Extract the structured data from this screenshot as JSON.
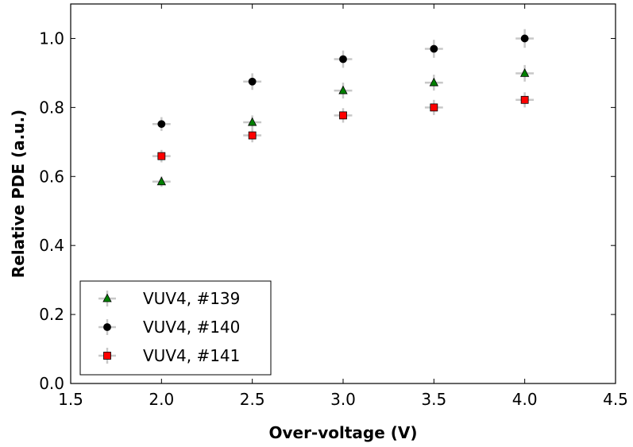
{
  "chart_data": {
    "type": "scatter",
    "xlabel": "Over-voltage (V)",
    "ylabel": "Relative PDE (a.u.)",
    "xlim": [
      1.5,
      4.5
    ],
    "ylim": [
      0.0,
      1.1
    ],
    "xticks": [
      "1.5",
      "2.0",
      "2.5",
      "3.0",
      "3.5",
      "4.0",
      "4.5"
    ],
    "yticks": [
      "0.0",
      "0.2",
      "0.4",
      "0.6",
      "0.8",
      "1.0"
    ],
    "grid": false,
    "legend_position": "lower-left",
    "x_error": 0.05,
    "series": [
      {
        "name": "VUV4, #139",
        "marker": "triangle",
        "color": "#008000",
        "x": [
          2.0,
          2.5,
          3.0,
          3.5,
          4.0
        ],
        "y": [
          0.585,
          0.757,
          0.849,
          0.872,
          0.899
        ],
        "yerr": [
          0.015,
          0.02,
          0.023,
          0.023,
          0.024
        ]
      },
      {
        "name": "VUV4, #140",
        "marker": "circle",
        "color": "#000000",
        "x": [
          2.0,
          2.5,
          3.0,
          3.5,
          4.0
        ],
        "y": [
          0.752,
          0.875,
          0.94,
          0.97,
          1.0
        ],
        "yerr": [
          0.02,
          0.024,
          0.025,
          0.026,
          0.027
        ]
      },
      {
        "name": "VUV4, #141",
        "marker": "square",
        "color": "#ff0000",
        "x": [
          2.0,
          2.5,
          3.0,
          3.5,
          4.0
        ],
        "y": [
          0.659,
          0.719,
          0.777,
          0.8,
          0.822
        ],
        "yerr": [
          0.018,
          0.02,
          0.021,
          0.022,
          0.022
        ]
      }
    ]
  }
}
